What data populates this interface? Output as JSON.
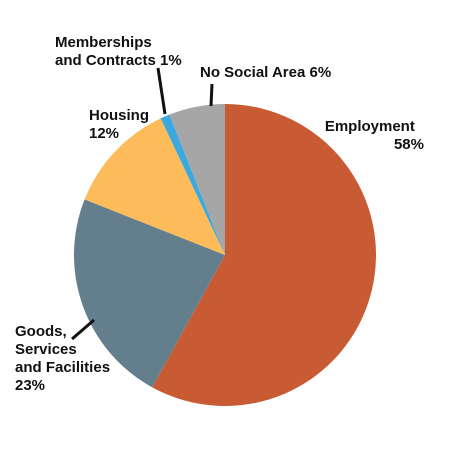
{
  "chart_data": {
    "type": "pie",
    "title": "",
    "slices": [
      {
        "label": "Employment",
        "value": 58,
        "value_label": "58%",
        "color": "#C95B34"
      },
      {
        "label": "Goods, Services and Facilities",
        "value": 23,
        "value_label": "23%",
        "color": "#637F8E"
      },
      {
        "label": "Housing",
        "value": 12,
        "value_label": "12%",
        "color": "#FDBB5A"
      },
      {
        "label": "Memberships and Contracts",
        "value": 1,
        "value_label": "1%",
        "color": "#39A9E0"
      },
      {
        "label": "No Social Area",
        "value": 6,
        "value_label": "6%",
        "color": "#A6A6A6"
      }
    ],
    "labels": {
      "employment": {
        "line1": "Employment",
        "line2": "58%"
      },
      "goods": {
        "line1": "Goods,",
        "line2": "Services",
        "line3": "and Facilities",
        "line4": "23%"
      },
      "housing": {
        "line1": "Housing",
        "line2": "12%"
      },
      "memberships": {
        "line1": "Memberships",
        "line2": "and Contracts 1%"
      },
      "no_social": {
        "line1": "No Social Area 6%"
      }
    },
    "legend": "none",
    "start_angle": "12 o'clock",
    "direction": "clockwise"
  }
}
